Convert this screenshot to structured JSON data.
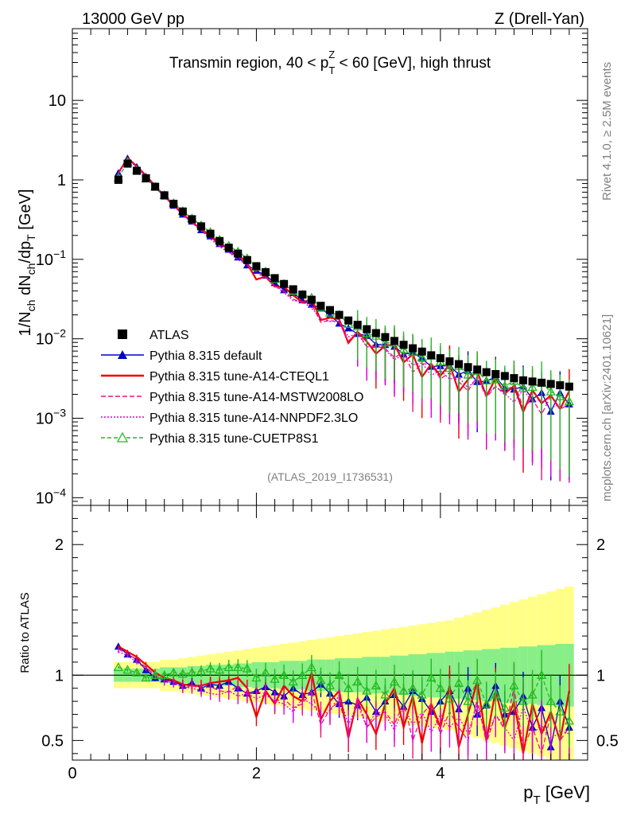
{
  "header": {
    "left": "13000 GeV pp",
    "right": "Z (Drell-Yan)"
  },
  "plot_title": {
    "prefix": "Transmin region, 40 < p",
    "sub": "T",
    "sup": "Z",
    "suffix": " < 60 [GeV], high thrust"
  },
  "side_labels": {
    "rivet": "Rivet 4.1.0, ≥ 2.5M events",
    "mcplots": "mcplots.cern.ch [arXiv:2401.10621]"
  },
  "analysis_id": "(ATLAS_2019_I1736531)",
  "colors": {
    "atlas": "#000000",
    "default": "#0000cc",
    "cteql1": "#ee0000",
    "mstw": "#ee1177",
    "nnpdf": "#dd00dd",
    "cuetp8s1": "#22bb22",
    "band_yellow": "#ffff88",
    "band_green": "#88ee88"
  },
  "chart_data": [
    {
      "type": "scatter",
      "panel": "main",
      "title": "Transmin region, 40 < pTZ < 60 [GeV], high thrust",
      "xlabel": "p_T [GeV]",
      "ylabel": "1/N_ch dN_ch/dp_T [GeV]",
      "ylabel_parts": {
        "a": "1/N",
        "a_sub": "ch",
        "b": " dN",
        "b_sub": "ch",
        "c": "/dp",
        "c_sub": "T",
        "d": " [GeV]"
      },
      "xlim": [
        0,
        5.6
      ],
      "ylim": [
        8e-05,
        80
      ],
      "yscale": "log",
      "ytick_labels": [
        {
          "value": 10,
          "base": "10",
          "exp": ""
        },
        {
          "value": 1,
          "base": "1",
          "exp": ""
        },
        {
          "value": 0.1,
          "base": "10",
          "exp": "−1"
        },
        {
          "value": 0.01,
          "base": "10",
          "exp": "−2"
        },
        {
          "value": 0.001,
          "base": "10",
          "exp": "−3"
        },
        {
          "value": 0.0001,
          "base": "10",
          "exp": "−4"
        }
      ],
      "x": [
        0.5,
        0.6,
        0.7,
        0.8,
        0.9,
        1.0,
        1.1,
        1.2,
        1.3,
        1.4,
        1.5,
        1.6,
        1.7,
        1.8,
        1.9,
        2.0,
        2.1,
        2.2,
        2.3,
        2.4,
        2.5,
        2.6,
        2.7,
        2.8,
        2.9,
        3.0,
        3.1,
        3.2,
        3.3,
        3.4,
        3.5,
        3.6,
        3.7,
        3.8,
        3.9,
        4.0,
        4.1,
        4.2,
        4.3,
        4.4,
        4.5,
        4.6,
        4.7,
        4.8,
        4.9,
        5.0,
        5.1,
        5.2,
        5.3,
        5.4
      ],
      "atlas": [
        1.0,
        1.6,
        1.3,
        1.05,
        0.82,
        0.64,
        0.5,
        0.4,
        0.32,
        0.26,
        0.21,
        0.17,
        0.14,
        0.118,
        0.098,
        0.082,
        0.069,
        0.058,
        0.049,
        0.042,
        0.036,
        0.031,
        0.026,
        0.023,
        0.02,
        0.017,
        0.015,
        0.0132,
        0.0118,
        0.0105,
        0.0094,
        0.0084,
        0.0076,
        0.0069,
        0.0062,
        0.0057,
        0.0052,
        0.0048,
        0.0044,
        0.0041,
        0.0038,
        0.0036,
        0.0034,
        0.0032,
        0.003,
        0.0029,
        0.0028,
        0.0027,
        0.0026,
        0.0025
      ],
      "legend": [
        "ATLAS",
        "Pythia 8.315 default",
        "Pythia 8.315 tune-A14-CTEQL1",
        "Pythia 8.315 tune-A14-MSTW2008LO",
        "Pythia 8.315 tune-A14-NNPDF2.3LO",
        "Pythia 8.315 tune-CUETP8S1"
      ]
    },
    {
      "type": "line",
      "panel": "ratio",
      "ylabel": "Ratio to ATLAS",
      "xlabel": "p_T [GeV]",
      "xlim": [
        0,
        5.6
      ],
      "ylim": [
        0.35,
        2.3
      ],
      "xticks": [
        0,
        2,
        4
      ],
      "yticks": [
        0.5,
        1,
        2
      ],
      "reference_line": 1.0,
      "x": [
        0.5,
        0.6,
        0.7,
        0.8,
        0.9,
        1.0,
        1.1,
        1.2,
        1.3,
        1.4,
        1.5,
        1.6,
        1.7,
        1.8,
        1.9,
        2.0,
        2.1,
        2.2,
        2.3,
        2.4,
        2.5,
        2.6,
        2.7,
        2.8,
        2.9,
        3.0,
        3.1,
        3.2,
        3.3,
        3.4,
        3.5,
        3.6,
        3.7,
        3.8,
        3.9,
        4.0,
        4.1,
        4.2,
        4.3,
        4.4,
        4.5,
        4.6,
        4.7,
        4.8,
        4.9,
        5.0,
        5.1,
        5.2,
        5.3,
        5.4
      ],
      "band_green_halfwidth": [
        0.05,
        0.05,
        0.05,
        0.05,
        0.05,
        0.06,
        0.06,
        0.06,
        0.07,
        0.07,
        0.08,
        0.08,
        0.08,
        0.09,
        0.09,
        0.1,
        0.1,
        0.1,
        0.11,
        0.11,
        0.11,
        0.12,
        0.12,
        0.12,
        0.13,
        0.13,
        0.13,
        0.14,
        0.14,
        0.14,
        0.15,
        0.15,
        0.16,
        0.16,
        0.17,
        0.17,
        0.18,
        0.18,
        0.19,
        0.19,
        0.2,
        0.2,
        0.21,
        0.21,
        0.22,
        0.22,
        0.23,
        0.23,
        0.24,
        0.24
      ],
      "band_yellow_halfwidth": [
        0.1,
        0.1,
        0.1,
        0.1,
        0.1,
        0.12,
        0.12,
        0.13,
        0.14,
        0.15,
        0.16,
        0.17,
        0.18,
        0.19,
        0.2,
        0.21,
        0.22,
        0.23,
        0.24,
        0.25,
        0.26,
        0.27,
        0.28,
        0.29,
        0.3,
        0.31,
        0.32,
        0.33,
        0.34,
        0.35,
        0.36,
        0.37,
        0.38,
        0.39,
        0.4,
        0.41,
        0.42,
        0.44,
        0.46,
        0.48,
        0.5,
        0.52,
        0.54,
        0.56,
        0.58,
        0.6,
        0.62,
        0.64,
        0.66,
        0.68
      ],
      "series": [
        {
          "name": "Pythia 8.315 default",
          "key": "default",
          "marker": "triangle-filled",
          "dash": "",
          "values": [
            1.22,
            1.16,
            1.12,
            1.04,
            0.98,
            0.97,
            0.95,
            0.92,
            0.94,
            0.9,
            0.93,
            0.92,
            0.95,
            0.9,
            0.86,
            0.88,
            0.91,
            0.87,
            0.84,
            0.9,
            0.85,
            0.87,
            0.93,
            0.86,
            0.78,
            0.8,
            0.77,
            0.83,
            0.72,
            0.8,
            0.85,
            0.76,
            0.88,
            0.82,
            0.72,
            0.8,
            0.88,
            0.74,
            0.9,
            0.7,
            0.77,
            0.92,
            0.7,
            0.72,
            0.84,
            0.6,
            0.75,
            0.45,
            0.8,
            0.6
          ]
        },
        {
          "name": "Pythia 8.315 tune-A14-CTEQL1",
          "key": "cteql1",
          "marker": "",
          "dash": "",
          "values": [
            1.22,
            1.18,
            1.14,
            1.08,
            1.02,
            0.98,
            0.96,
            0.93,
            0.92,
            0.92,
            0.94,
            0.95,
            0.96,
            0.98,
            0.9,
            0.68,
            0.88,
            0.78,
            0.92,
            0.84,
            0.8,
            1.02,
            0.66,
            0.8,
            0.88,
            0.52,
            0.82,
            0.7,
            0.55,
            0.78,
            0.9,
            0.6,
            0.84,
            0.48,
            0.78,
            0.6,
            0.92,
            0.45,
            0.7,
            0.95,
            0.5,
            0.88,
            0.6,
            0.8,
            0.4,
            0.78,
            0.55,
            0.72,
            0.5,
            0.88
          ]
        },
        {
          "name": "Pythia 8.315 tune-A14-MSTW2008LO",
          "key": "mstw",
          "marker": "",
          "dash": "6,3",
          "values": [
            1.2,
            1.16,
            1.12,
            1.06,
            1.0,
            0.96,
            0.95,
            0.9,
            0.92,
            0.9,
            0.91,
            0.88,
            0.87,
            0.92,
            0.85,
            0.87,
            0.86,
            0.8,
            0.82,
            0.75,
            0.78,
            0.88,
            0.62,
            0.74,
            0.8,
            0.55,
            0.82,
            0.6,
            0.68,
            0.72,
            0.62,
            0.8,
            0.5,
            0.7,
            0.78,
            0.55,
            0.72,
            0.6,
            0.5,
            0.82,
            0.48,
            0.7,
            0.58,
            0.9,
            0.45,
            0.6,
            0.4,
            0.7,
            0.5,
            0.6
          ]
        },
        {
          "name": "Pythia 8.315 tune-A14-NNPDF2.3LO",
          "key": "nnpdf",
          "marker": "",
          "dash": "2,2",
          "values": [
            1.18,
            1.15,
            1.1,
            1.05,
            0.99,
            0.95,
            0.94,
            0.91,
            0.9,
            0.88,
            0.86,
            0.85,
            0.88,
            0.84,
            0.86,
            0.82,
            0.85,
            0.8,
            0.78,
            0.72,
            0.82,
            0.78,
            0.7,
            0.72,
            0.85,
            0.62,
            0.78,
            0.6,
            0.72,
            0.7,
            0.58,
            0.76,
            0.62,
            0.72,
            0.56,
            0.7,
            0.6,
            0.68,
            0.55,
            0.78,
            0.52,
            0.7,
            0.6,
            0.5,
            0.76,
            0.55,
            0.62,
            0.5,
            0.58,
            0.55
          ]
        },
        {
          "name": "Pythia 8.315 tune-CUETP8S1",
          "key": "cuetp8s1",
          "marker": "triangle-open",
          "dash": "5,3",
          "values": [
            1.06,
            1.04,
            1.02,
            0.98,
            1.0,
            1.0,
            1.02,
            1.01,
            1.02,
            1.03,
            1.05,
            1.04,
            1.06,
            1.06,
            1.05,
            0.98,
            1.02,
            0.97,
            1.0,
            0.95,
            1.0,
            1.06,
            0.96,
            0.92,
            1.0,
            0.9,
            0.95,
            0.88,
            0.92,
            0.85,
            0.95,
            0.88,
            0.9,
            0.85,
            0.98,
            0.9,
            0.82,
            0.94,
            0.8,
            0.96,
            0.78,
            0.85,
            0.75,
            0.92,
            0.8,
            0.85,
            1.0,
            0.8,
            0.72,
            0.65
          ]
        }
      ]
    }
  ]
}
